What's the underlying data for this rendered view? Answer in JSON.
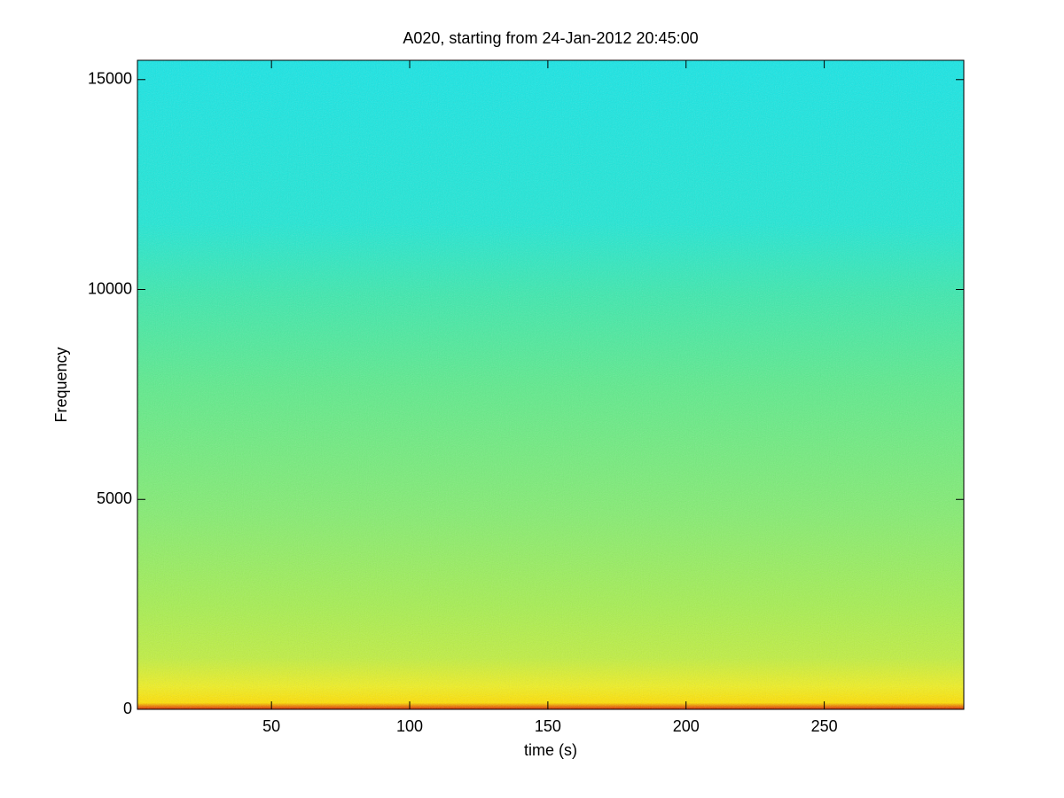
{
  "chart_data": {
    "type": "spectrogram",
    "title": "A020, starting from 24-Jan-2012 20:45:00",
    "xlabel": "time (s)",
    "ylabel": "Frequency",
    "xlim": [
      1.5,
      300.5
    ],
    "xticks": [
      50,
      100,
      150,
      200,
      250
    ],
    "ylim": [
      0,
      15460
    ],
    "yticks": [
      0,
      5000,
      10000,
      15000
    ]
  }
}
